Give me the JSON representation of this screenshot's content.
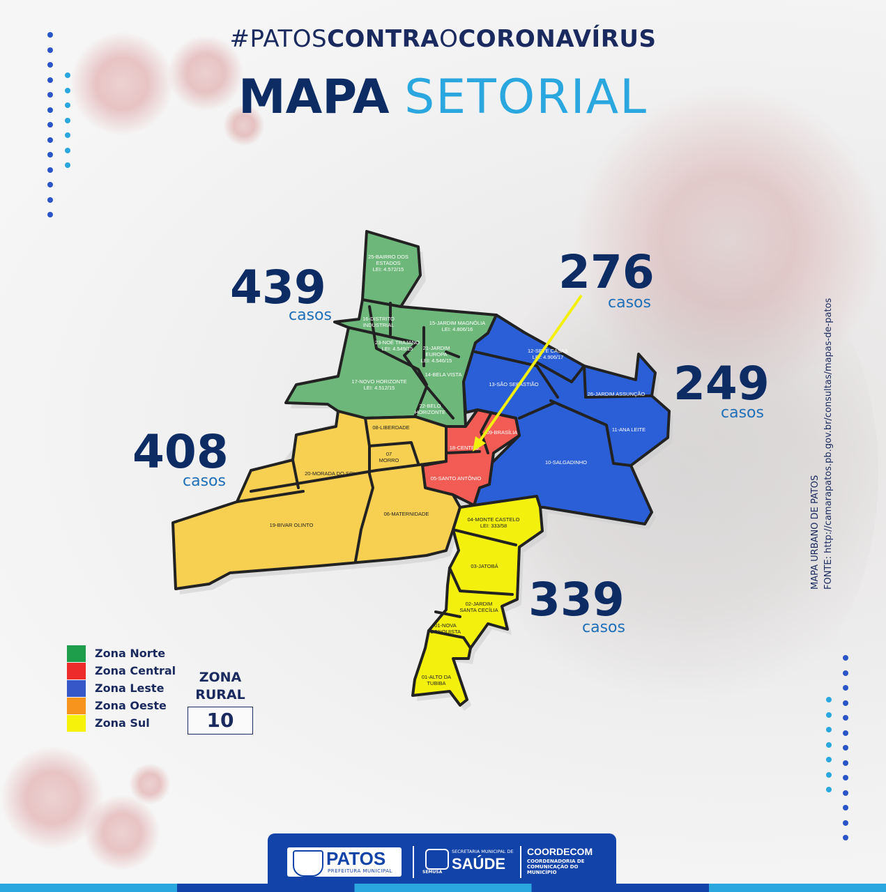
{
  "header": {
    "hashtag_a": "#PATOS",
    "hashtag_b": "CONTRA",
    "hashtag_c": "O",
    "hashtag_d": "CORONAVÍRUS",
    "title_a": "MAPA",
    "title_b": "SETORIAL"
  },
  "zones": [
    {
      "name": "Zona Norte",
      "color": "#5bb46a",
      "cases": "439",
      "unit": "casos"
    },
    {
      "name": "Zona Central",
      "color": "#f25c54",
      "cases": "276",
      "unit": "casos"
    },
    {
      "name": "Zona Leste",
      "color": "#2b5fd8",
      "cases": "249",
      "unit": "casos"
    },
    {
      "name": "Zona Oeste",
      "color": "#f7941d",
      "cases": "408",
      "unit": "casos"
    },
    {
      "name": "Zona Sul",
      "color": "#f3f00e",
      "cases": "339",
      "unit": "casos"
    }
  ],
  "legend_colors": [
    "#1e9e4a",
    "#ee2b2b",
    "#3557c7",
    "#f7941d",
    "#f6f20a"
  ],
  "rural": {
    "label_a": "ZONA",
    "label_b": "RURAL",
    "value": "10"
  },
  "source": {
    "line1": "MAPA URBANO DE PATOS",
    "line2": "FONTE: http://camarapatos.pb.gov.br/consultas/mapas-de-patos"
  },
  "neighborhoods": {
    "n25": [
      "25-BAIRRO DOS",
      "ESTADOS",
      "LEI: 4.572/15"
    ],
    "n16": [
      "16-DISTRITO",
      "INDUSTRIAL"
    ],
    "n15": [
      "15-JARDIM MAGNÓLIA",
      "LEI: 4.806/16"
    ],
    "n23": [
      "23-NOÉ TRAJANO",
      "LEI: 4.549/15"
    ],
    "n21": [
      "21-JARDIM",
      "EUROPA",
      "LEI: 4.546/15"
    ],
    "n14": [
      "14-BELA VISTA"
    ],
    "n17": [
      "17-NOVO HORIZONTE",
      "LEI: 4.512/15"
    ],
    "n22": [
      "22-BELO",
      "HORIZONTE"
    ],
    "n12": [
      "12-SETE CASAS",
      "LEI: 4.906/17"
    ],
    "n13": [
      "13-SÃO SEBASTIÃO"
    ],
    "n26": [
      "26-JARDIM ASSUNÇÃO"
    ],
    "n11": [
      "11-ANA LEITE"
    ],
    "n10": [
      "10-SALGADINHO"
    ],
    "n09": [
      "09-BRASÍLIA"
    ],
    "n18": [
      "18-CENTRO"
    ],
    "n05": [
      "05-SANTO ANTÔNIO"
    ],
    "n08": [
      "08-LIBERDADE"
    ],
    "n07": [
      "07",
      "MORRO"
    ],
    "n20": [
      "20-MORADA DO SOL"
    ],
    "n19": [
      "19-BIVAR OLINTO"
    ],
    "n06": [
      "06-MATERNIDADE"
    ],
    "n04": [
      "04-MONTE CASTELO",
      "LEI: 333/58"
    ],
    "n03": [
      "03-JATOBÁ"
    ],
    "n02": [
      "02-JARDIM",
      "SANTA CECÍLIA"
    ],
    "n01": [
      "01-NOVA",
      "CONQUISTA"
    ],
    "nAT": [
      "01-ALTO DA",
      "TUBIBA"
    ]
  },
  "footer": {
    "patos": "PATOS",
    "patos_sub": "PREFEITURA MUNICIPAL",
    "semusa": "SEMUSA",
    "saude_top": "SECRETARIA MUNICIPAL DE",
    "saude": "SAÚDE",
    "coordecom": "COORDECOM",
    "coordecom_sub1": "COORDENADORIA DE",
    "coordecom_sub2": "COMUNICAÇÃO DO",
    "coordecom_sub3": "MUNICÍPIO"
  }
}
